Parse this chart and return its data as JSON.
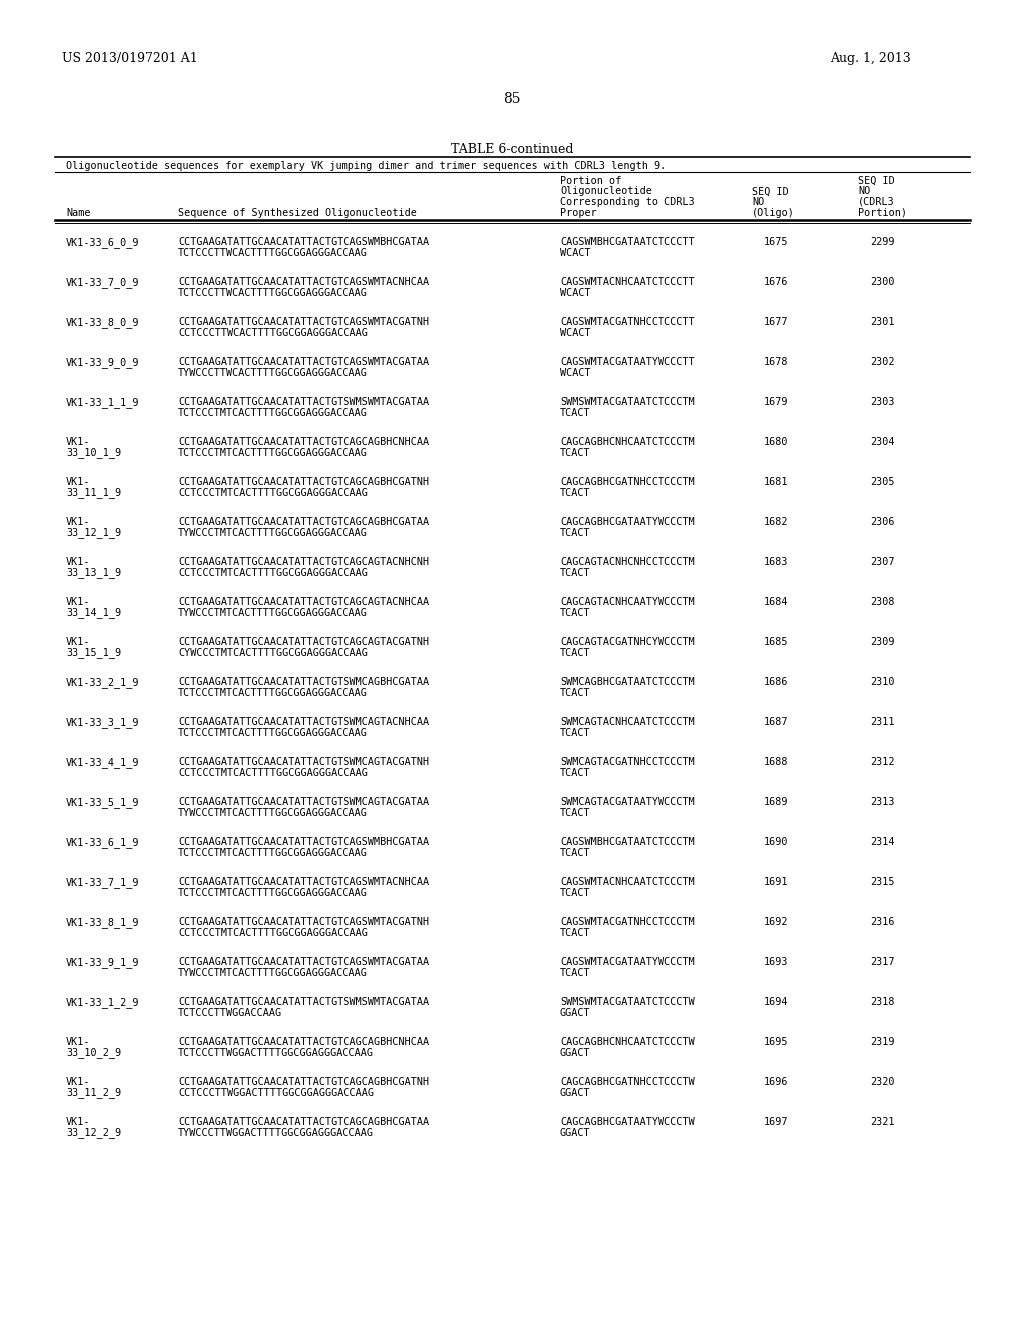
{
  "patent_left": "US 2013/0197201 A1",
  "patent_right": "Aug. 1, 2013",
  "page_number": "85",
  "table_title": "TABLE 6-continued",
  "table_subtitle": "Oligonucleotide sequences for exemplary VK jumping dimer and trimer sequences with CDRL3 length 9.",
  "rows": [
    {
      "name": "VK1-33_6_0_9",
      "seq": [
        "CCTGAAGATATTGCAACATATTACTGTCAGSWMBHCGATAA",
        "TCTCCCTTWCACTTTTGGCGGAGGGACCAAG"
      ],
      "portion": [
        "CAGSWMBHCGATAATCTCCCTT",
        "WCACT"
      ],
      "seq_id_oligo": "1675",
      "seq_id_cdrl3": "2299"
    },
    {
      "name": "VK1-33_7_0_9",
      "seq": [
        "CCTGAAGATATTGCAACATATTACTGTCAGSWMTACNHCAA",
        "TCTCCCTTWCACTTTTGGCGGAGGGACCAAG"
      ],
      "portion": [
        "CAGSWMTACNHCAATCTCCCTT",
        "WCACT"
      ],
      "seq_id_oligo": "1676",
      "seq_id_cdrl3": "2300"
    },
    {
      "name": "VK1-33_8_0_9",
      "seq": [
        "CCTGAAGATATTGCAACATATTACTGTCAGSWMTACGATNH",
        "CCTCCCTTWCACTTTTGGCGGAGGGACCAAG"
      ],
      "portion": [
        "CAGSWMTACGATNHCCTCCCTT",
        "WCACT"
      ],
      "seq_id_oligo": "1677",
      "seq_id_cdrl3": "2301"
    },
    {
      "name": "VK1-33_9_0_9",
      "seq": [
        "CCTGAAGATATTGCAACATATTACTGTCAGSWMTACGATAA",
        "TYWCCCTTWCACTTTTGGCGGAGGGACCAAG"
      ],
      "portion": [
        "CAGSWMTACGATAATYWCCCTT",
        "WCACT"
      ],
      "seq_id_oligo": "1678",
      "seq_id_cdrl3": "2302"
    },
    {
      "name": "VK1-33_1_1_9",
      "seq": [
        "CCTGAAGATATTGCAACATATTACTGTSWMSWMTACGATAA",
        "TCTCCCTMTCACTTTTGGCGGAGGGACCAAG"
      ],
      "portion": [
        "SWMSWMTACGATAATCTCCCTM",
        "TCACT"
      ],
      "seq_id_oligo": "1679",
      "seq_id_cdrl3": "2303"
    },
    {
      "name": [
        "VK1-",
        "33_10_1_9"
      ],
      "seq": [
        "CCTGAAGATATTGCAACATATTACTGTCAGCAGBHCNHCAA",
        "TCTCCCTMTCACTTTTGGCGGAGGGACCAAG"
      ],
      "portion": [
        "CAGCAGBHCNHCAATCTCCCTM",
        "TCACT"
      ],
      "seq_id_oligo": "1680",
      "seq_id_cdrl3": "2304"
    },
    {
      "name": [
        "VK1-",
        "33_11_1_9"
      ],
      "seq": [
        "CCTGAAGATATTGCAACATATTACTGTCAGCAGBHCGATNH",
        "CCTCCCTMTCACTTTTGGCGGAGGGACCAAG"
      ],
      "portion": [
        "CAGCAGBHCGATNHCCTCCCTM",
        "TCACT"
      ],
      "seq_id_oligo": "1681",
      "seq_id_cdrl3": "2305"
    },
    {
      "name": [
        "VK1-",
        "33_12_1_9"
      ],
      "seq": [
        "CCTGAAGATATTGCAACATATTACTGTCAGCAGBHCGATAA",
        "TYWCCCTMTCACTTTTGGCGGAGGGACCAAG"
      ],
      "portion": [
        "CAGCAGBHCGATAATYWCCCTM",
        "TCACT"
      ],
      "seq_id_oligo": "1682",
      "seq_id_cdrl3": "2306"
    },
    {
      "name": [
        "VK1-",
        "33_13_1_9"
      ],
      "seq": [
        "CCTGAAGATATTGCAACATATTACTGTCAGCAGTACNHCNH",
        "CCTCCCTMTCACTTTTGGCGGAGGGACCAAG"
      ],
      "portion": [
        "CAGCAGTACNHCNHCCTCCCTM",
        "TCACT"
      ],
      "seq_id_oligo": "1683",
      "seq_id_cdrl3": "2307"
    },
    {
      "name": [
        "VK1-",
        "33_14_1_9"
      ],
      "seq": [
        "CCTGAAGATATTGCAACATATTACTGTCAGCAGTACNHCAA",
        "TYWCCCTMTCACTTTTGGCGGAGGGACCAAG"
      ],
      "portion": [
        "CAGCAGTACNHCAATYWCCCTM",
        "TCACT"
      ],
      "seq_id_oligo": "1684",
      "seq_id_cdrl3": "2308"
    },
    {
      "name": [
        "VK1-",
        "33_15_1_9"
      ],
      "seq": [
        "CCTGAAGATATTGCAACATATTACTGTCAGCAGTACGATNH",
        "CYWCCCTMTCACTTTTGGCGGAGGGACCAAG"
      ],
      "portion": [
        "CAGCAGTACGATNHCYWCCCTM",
        "TCACT"
      ],
      "seq_id_oligo": "1685",
      "seq_id_cdrl3": "2309"
    },
    {
      "name": "VK1-33_2_1_9",
      "seq": [
        "CCTGAAGATATTGCAACATATTACTGTSWMCAGBHCGATAA",
        "TCTCCCTMTCACTTTTGGCGGAGGGACCAAG"
      ],
      "portion": [
        "SWMCAGBHCGATAATCTCCCTM",
        "TCACT"
      ],
      "seq_id_oligo": "1686",
      "seq_id_cdrl3": "2310"
    },
    {
      "name": "VK1-33_3_1_9",
      "seq": [
        "CCTGAAGATATTGCAACATATTACTGTSWMCAGTACNHCAA",
        "TCTCCCTMTCACTTTTGGCGGAGGGACCAAG"
      ],
      "portion": [
        "SWMCAGTACNHCAATCTCCCTM",
        "TCACT"
      ],
      "seq_id_oligo": "1687",
      "seq_id_cdrl3": "2311"
    },
    {
      "name": "VK1-33_4_1_9",
      "seq": [
        "CCTGAAGATATTGCAACATATTACTGTSWMCAGTACGATNH",
        "CCTCCCTMTCACTTTTGGCGGAGGGACCAAG"
      ],
      "portion": [
        "SWMCAGTACGATNHCCTCCCTM",
        "TCACT"
      ],
      "seq_id_oligo": "1688",
      "seq_id_cdrl3": "2312"
    },
    {
      "name": "VK1-33_5_1_9",
      "seq": [
        "CCTGAAGATATTGCAACATATTACTGTSWMCAGTACGATAA",
        "TYWCCCTMTCACTTTTGGCGGAGGGACCAAG"
      ],
      "portion": [
        "SWMCAGTACGATAATYWCCCTM",
        "TCACT"
      ],
      "seq_id_oligo": "1689",
      "seq_id_cdrl3": "2313"
    },
    {
      "name": "VK1-33_6_1_9",
      "seq": [
        "CCTGAAGATATTGCAACATATTACTGTCAGSWMBHCGATAA",
        "TCTCCCTMTCACTTTTGGCGGAGGGACCAAG"
      ],
      "portion": [
        "CAGSWMBHCGATAATCTCCCTM",
        "TCACT"
      ],
      "seq_id_oligo": "1690",
      "seq_id_cdrl3": "2314"
    },
    {
      "name": "VK1-33_7_1_9",
      "seq": [
        "CCTGAAGATATTGCAACATATTACTGTCAGSWMTACNHCAA",
        "TCTCCCTMTCACTTTTGGCGGAGGGACCAAG"
      ],
      "portion": [
        "CAGSWMTACNHCAATCTCCCTM",
        "TCACT"
      ],
      "seq_id_oligo": "1691",
      "seq_id_cdrl3": "2315"
    },
    {
      "name": "VK1-33_8_1_9",
      "seq": [
        "CCTGAAGATATTGCAACATATTACTGTCAGSWMTACGATNH",
        "CCTCCCTMTCACTTTTGGCGGAGGGACCAAG"
      ],
      "portion": [
        "CAGSWMTACGATNHCCTCCCTM",
        "TCACT"
      ],
      "seq_id_oligo": "1692",
      "seq_id_cdrl3": "2316"
    },
    {
      "name": "VK1-33_9_1_9",
      "seq": [
        "CCTGAAGATATTGCAACATATTACTGTCAGSWMTACGATAA",
        "TYWCCCTMTCACTTTTGGCGGAGGGACCAAG"
      ],
      "portion": [
        "CAGSWMTACGATAATYWCCCTM",
        "TCACT"
      ],
      "seq_id_oligo": "1693",
      "seq_id_cdrl3": "2317"
    },
    {
      "name": "VK1-33_1_2_9",
      "seq": [
        "CCTGAAGATATTGCAACATATTACTGTSWMSWMTACGATAA",
        "TCTCCCTTWGGACCAAG"
      ],
      "portion": [
        "SWMSWMTACGATAATCTCCCTW",
        "GGACT"
      ],
      "seq_id_oligo": "1694",
      "seq_id_cdrl3": "2318"
    },
    {
      "name": [
        "VK1-",
        "33_10_2_9"
      ],
      "seq": [
        "CCTGAAGATATTGCAACATATTACTGTCAGCAGBHCNHCAA",
        "TCTCCCTTWGGACTTTTGGCGGAGGGACCAAG"
      ],
      "portion": [
        "CAGCAGBHCNHCAATCTCCCTW",
        "GGACT"
      ],
      "seq_id_oligo": "1695",
      "seq_id_cdrl3": "2319"
    },
    {
      "name": [
        "VK1-",
        "33_11_2_9"
      ],
      "seq": [
        "CCTGAAGATATTGCAACATATTACTGTCAGCAGBHCGATNH",
        "CCTCCCTTWGGACTTTTGGCGGAGGGACCAAG"
      ],
      "portion": [
        "CAGCAGBHCGATNHCCTCCCTW",
        "GGACT"
      ],
      "seq_id_oligo": "1696",
      "seq_id_cdrl3": "2320"
    },
    {
      "name": [
        "VK1-",
        "33_12_2_9"
      ],
      "seq": [
        "CCTGAAGATATTGCAACATATTACTGTCAGCAGBHCGATAA",
        "TYWCCCTTWGGACTTTTGGCGGAGGGACCAAG"
      ],
      "portion": [
        "CAGCAGBHCGATAATYWCCCTW",
        "GGACT"
      ],
      "seq_id_oligo": "1697",
      "seq_id_cdrl3": "2321"
    }
  ]
}
